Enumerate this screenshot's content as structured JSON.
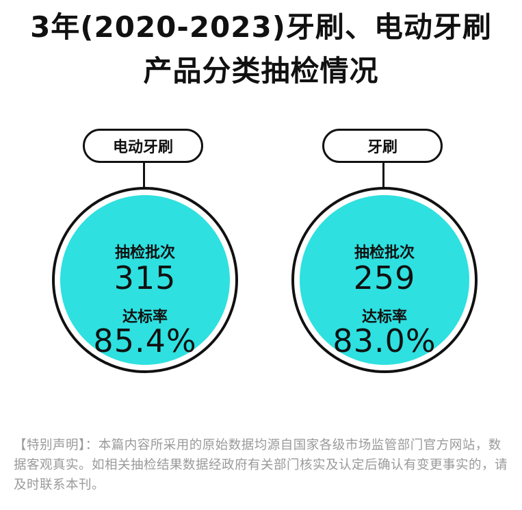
{
  "title": {
    "line1": "3年(2020-2023)牙刷、电动牙刷",
    "line2": "产品分类抽检情况"
  },
  "cards": [
    {
      "category": "电动牙刷",
      "batches_label": "抽检批次",
      "batches_value": "315",
      "pass_rate_label": "达标率",
      "pass_rate_value": "85.4%"
    },
    {
      "category": "牙刷",
      "batches_label": "抽检批次",
      "batches_value": "259",
      "pass_rate_label": "达标率",
      "pass_rate_value": "83.0%"
    }
  ],
  "notice": "【特别声明】：本篇内容所采用的原始数据均源自国家各级市场监管部门官方网站，数据客观真实。如相关抽检结果数据经政府有关部门核实及认定后确认有变更事实的，请及时联系本刊。",
  "colors": {
    "circle_fill": "#2ee0e0",
    "outline": "#111111",
    "notice_text": "#9a9a9a"
  }
}
